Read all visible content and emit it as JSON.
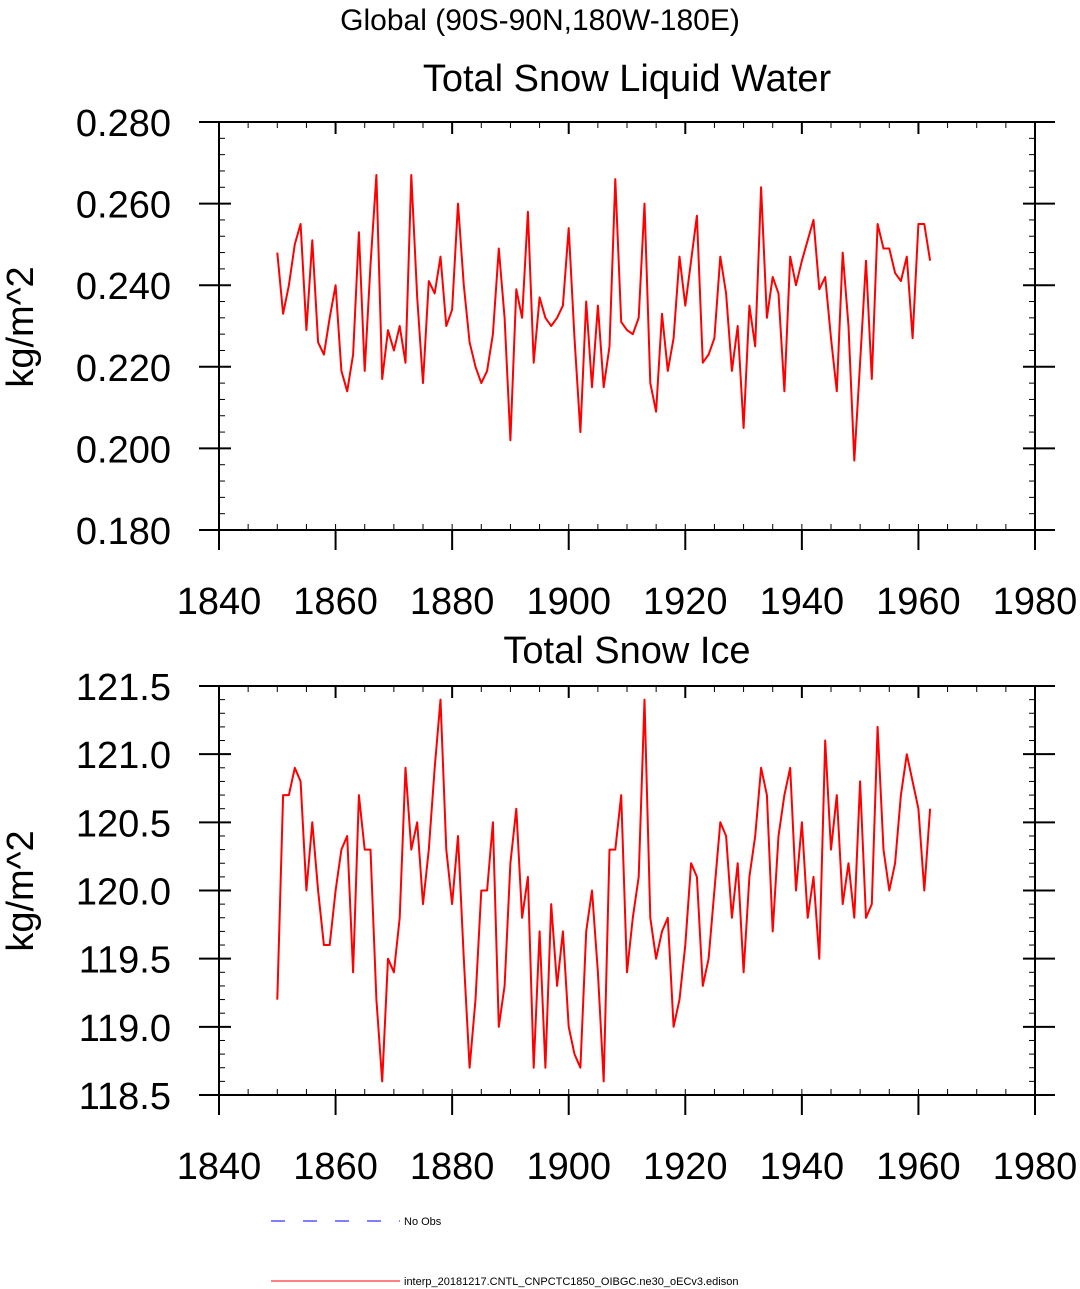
{
  "page_title": "Global (90S-90N,180W-180E)",
  "chart_data": [
    {
      "type": "line",
      "title": "Total Snow Liquid Water",
      "xlabel": "",
      "ylabel": "kg/m^2",
      "xlim": [
        1840,
        1980
      ],
      "ylim": [
        0.18,
        0.28
      ],
      "x_ticks": [
        1840,
        1860,
        1880,
        1900,
        1920,
        1940,
        1960,
        1980
      ],
      "x_tick_labels": [
        "1840",
        "1860",
        "1880",
        "1900",
        "1920",
        "1940",
        "1960",
        "1980"
      ],
      "y_ticks": [
        0.18,
        0.2,
        0.22,
        0.24,
        0.26,
        0.28
      ],
      "y_tick_labels": [
        "0.180",
        "0.200",
        "0.220",
        "0.240",
        "0.260",
        "0.280"
      ],
      "x_minor_step": 5,
      "y_minor_step": 0.004,
      "grid": false,
      "series": [
        {
          "name": "interp_20181217.CNTL_CNPCTC1850_OIBGC.ne30_oECv3.edison",
          "color": "#ff0000",
          "x_start": 1850,
          "x_step": 1,
          "values": [
            0.248,
            0.233,
            0.24,
            0.25,
            0.255,
            0.229,
            0.251,
            0.226,
            0.223,
            0.232,
            0.24,
            0.219,
            0.214,
            0.223,
            0.253,
            0.219,
            0.245,
            0.267,
            0.217,
            0.229,
            0.224,
            0.23,
            0.221,
            0.267,
            0.237,
            0.216,
            0.241,
            0.238,
            0.247,
            0.23,
            0.234,
            0.26,
            0.24,
            0.226,
            0.22,
            0.216,
            0.219,
            0.228,
            0.249,
            0.232,
            0.202,
            0.239,
            0.232,
            0.258,
            0.221,
            0.237,
            0.232,
            0.23,
            0.232,
            0.235,
            0.254,
            0.227,
            0.204,
            0.236,
            0.215,
            0.235,
            0.215,
            0.225,
            0.266,
            0.231,
            0.229,
            0.228,
            0.232,
            0.26,
            0.216,
            0.209,
            0.233,
            0.219,
            0.227,
            0.247,
            0.235,
            0.246,
            0.257,
            0.221,
            0.223,
            0.227,
            0.247,
            0.238,
            0.219,
            0.23,
            0.205,
            0.235,
            0.225,
            0.264,
            0.232,
            0.242,
            0.238,
            0.214,
            0.247,
            0.24,
            0.246,
            0.251,
            0.256,
            0.239,
            0.242,
            0.227,
            0.214,
            0.248,
            0.23,
            0.197,
            0.221,
            0.246,
            0.217,
            0.255,
            0.249,
            0.249,
            0.243,
            0.241,
            0.247,
            0.227,
            0.255,
            0.255,
            0.246
          ]
        }
      ]
    },
    {
      "type": "line",
      "title": "Total Snow Ice",
      "xlabel": "",
      "ylabel": "kg/m^2",
      "xlim": [
        1840,
        1980
      ],
      "ylim": [
        118.5,
        121.5
      ],
      "x_ticks": [
        1840,
        1860,
        1880,
        1900,
        1920,
        1940,
        1960,
        1980
      ],
      "x_tick_labels": [
        "1840",
        "1860",
        "1880",
        "1900",
        "1920",
        "1940",
        "1960",
        "1980"
      ],
      "y_ticks": [
        118.5,
        119.0,
        119.5,
        120.0,
        120.5,
        121.0,
        121.5
      ],
      "y_tick_labels": [
        "118.5",
        "119.0",
        "119.5",
        "120.0",
        "120.5",
        "121.0",
        "121.5"
      ],
      "x_minor_step": 5,
      "y_minor_step": 0.1,
      "grid": false,
      "series": [
        {
          "name": "interp_20181217.CNTL_CNPCTC1850_OIBGC.ne30_oECv3.edison",
          "color": "#ff0000",
          "x_start": 1850,
          "x_step": 1,
          "values": [
            119.2,
            120.7,
            120.7,
            120.9,
            120.8,
            120.0,
            120.5,
            120.0,
            119.6,
            119.6,
            120.0,
            120.3,
            120.4,
            119.4,
            120.7,
            120.3,
            120.3,
            119.2,
            118.6,
            119.5,
            119.4,
            119.8,
            120.9,
            120.3,
            120.5,
            119.9,
            120.3,
            120.9,
            121.4,
            120.3,
            119.9,
            120.4,
            119.5,
            118.7,
            119.2,
            120.0,
            120.0,
            120.5,
            119.0,
            119.3,
            120.2,
            120.6,
            119.8,
            120.1,
            118.7,
            119.7,
            118.7,
            119.9,
            119.3,
            119.7,
            119.0,
            118.8,
            118.7,
            119.7,
            120.0,
            119.4,
            118.6,
            120.3,
            120.3,
            120.7,
            119.4,
            119.8,
            120.1,
            121.4,
            119.8,
            119.5,
            119.7,
            119.8,
            119.0,
            119.2,
            119.6,
            120.2,
            120.1,
            119.3,
            119.5,
            120.0,
            120.5,
            120.4,
            119.8,
            120.2,
            119.4,
            120.1,
            120.4,
            120.9,
            120.7,
            119.7,
            120.4,
            120.7,
            120.9,
            120.0,
            120.5,
            119.8,
            120.1,
            119.5,
            121.1,
            120.3,
            120.7,
            119.9,
            120.2,
            119.8,
            120.8,
            119.8,
            119.9,
            121.2,
            120.3,
            120.0,
            120.2,
            120.7,
            121.0,
            120.8,
            120.6,
            120.0,
            120.6
          ]
        }
      ]
    }
  ],
  "legend": {
    "placement": "bottom",
    "entries": [
      {
        "label": "No Obs",
        "color": "#0000ff",
        "style": "dashed"
      },
      {
        "label": "interp_20181217.CNTL_CNPCTC1850_OIBGC.ne30_oECv3.edison",
        "color": "#ff0000",
        "style": "solid"
      }
    ]
  }
}
